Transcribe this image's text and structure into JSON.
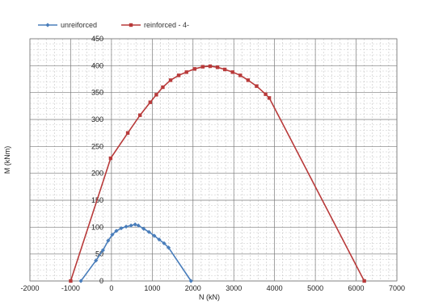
{
  "chart_data": {
    "type": "line",
    "xlabel": "N (kN)",
    "ylabel": "M (kNm)",
    "xlim": [
      -2000,
      7000
    ],
    "ylim": [
      0,
      450
    ],
    "xticks": [
      "-2000",
      "-1000",
      "0",
      "1000",
      "2000",
      "3000",
      "4000",
      "5000",
      "6000",
      "7000"
    ],
    "yticks": [
      "0",
      "50",
      "100",
      "150",
      "200",
      "250",
      "300",
      "350",
      "400",
      "450"
    ],
    "grid": true,
    "legend_position": "top-left",
    "series": [
      {
        "name": "unreiforced",
        "color": "#4a7ebb",
        "marker": "diamond",
        "points": [
          [
            -750,
            0
          ],
          [
            -380,
            38
          ],
          [
            -210,
            57
          ],
          [
            -80,
            75
          ],
          [
            20,
            86
          ],
          [
            120,
            93
          ],
          [
            240,
            98
          ],
          [
            360,
            101
          ],
          [
            480,
            103
          ],
          [
            580,
            105
          ],
          [
            660,
            103
          ],
          [
            790,
            97
          ],
          [
            920,
            91
          ],
          [
            1050,
            84
          ],
          [
            1170,
            77
          ],
          [
            1290,
            70
          ],
          [
            1400,
            62
          ],
          [
            1950,
            0
          ]
        ]
      },
      {
        "name": "reinforced - 4-",
        "color": "#b83a3a",
        "marker": "square",
        "points": [
          [
            -1000,
            0
          ],
          [
            -20,
            228
          ],
          [
            400,
            275
          ],
          [
            700,
            308
          ],
          [
            950,
            332
          ],
          [
            1100,
            346
          ],
          [
            1260,
            360
          ],
          [
            1450,
            373
          ],
          [
            1650,
            382
          ],
          [
            1840,
            388
          ],
          [
            2040,
            394
          ],
          [
            2240,
            398
          ],
          [
            2420,
            399
          ],
          [
            2600,
            397
          ],
          [
            2780,
            393
          ],
          [
            2970,
            388
          ],
          [
            3160,
            382
          ],
          [
            3350,
            373
          ],
          [
            3560,
            362
          ],
          [
            3780,
            347
          ],
          [
            3870,
            340
          ],
          [
            6200,
            0
          ]
        ]
      }
    ]
  }
}
